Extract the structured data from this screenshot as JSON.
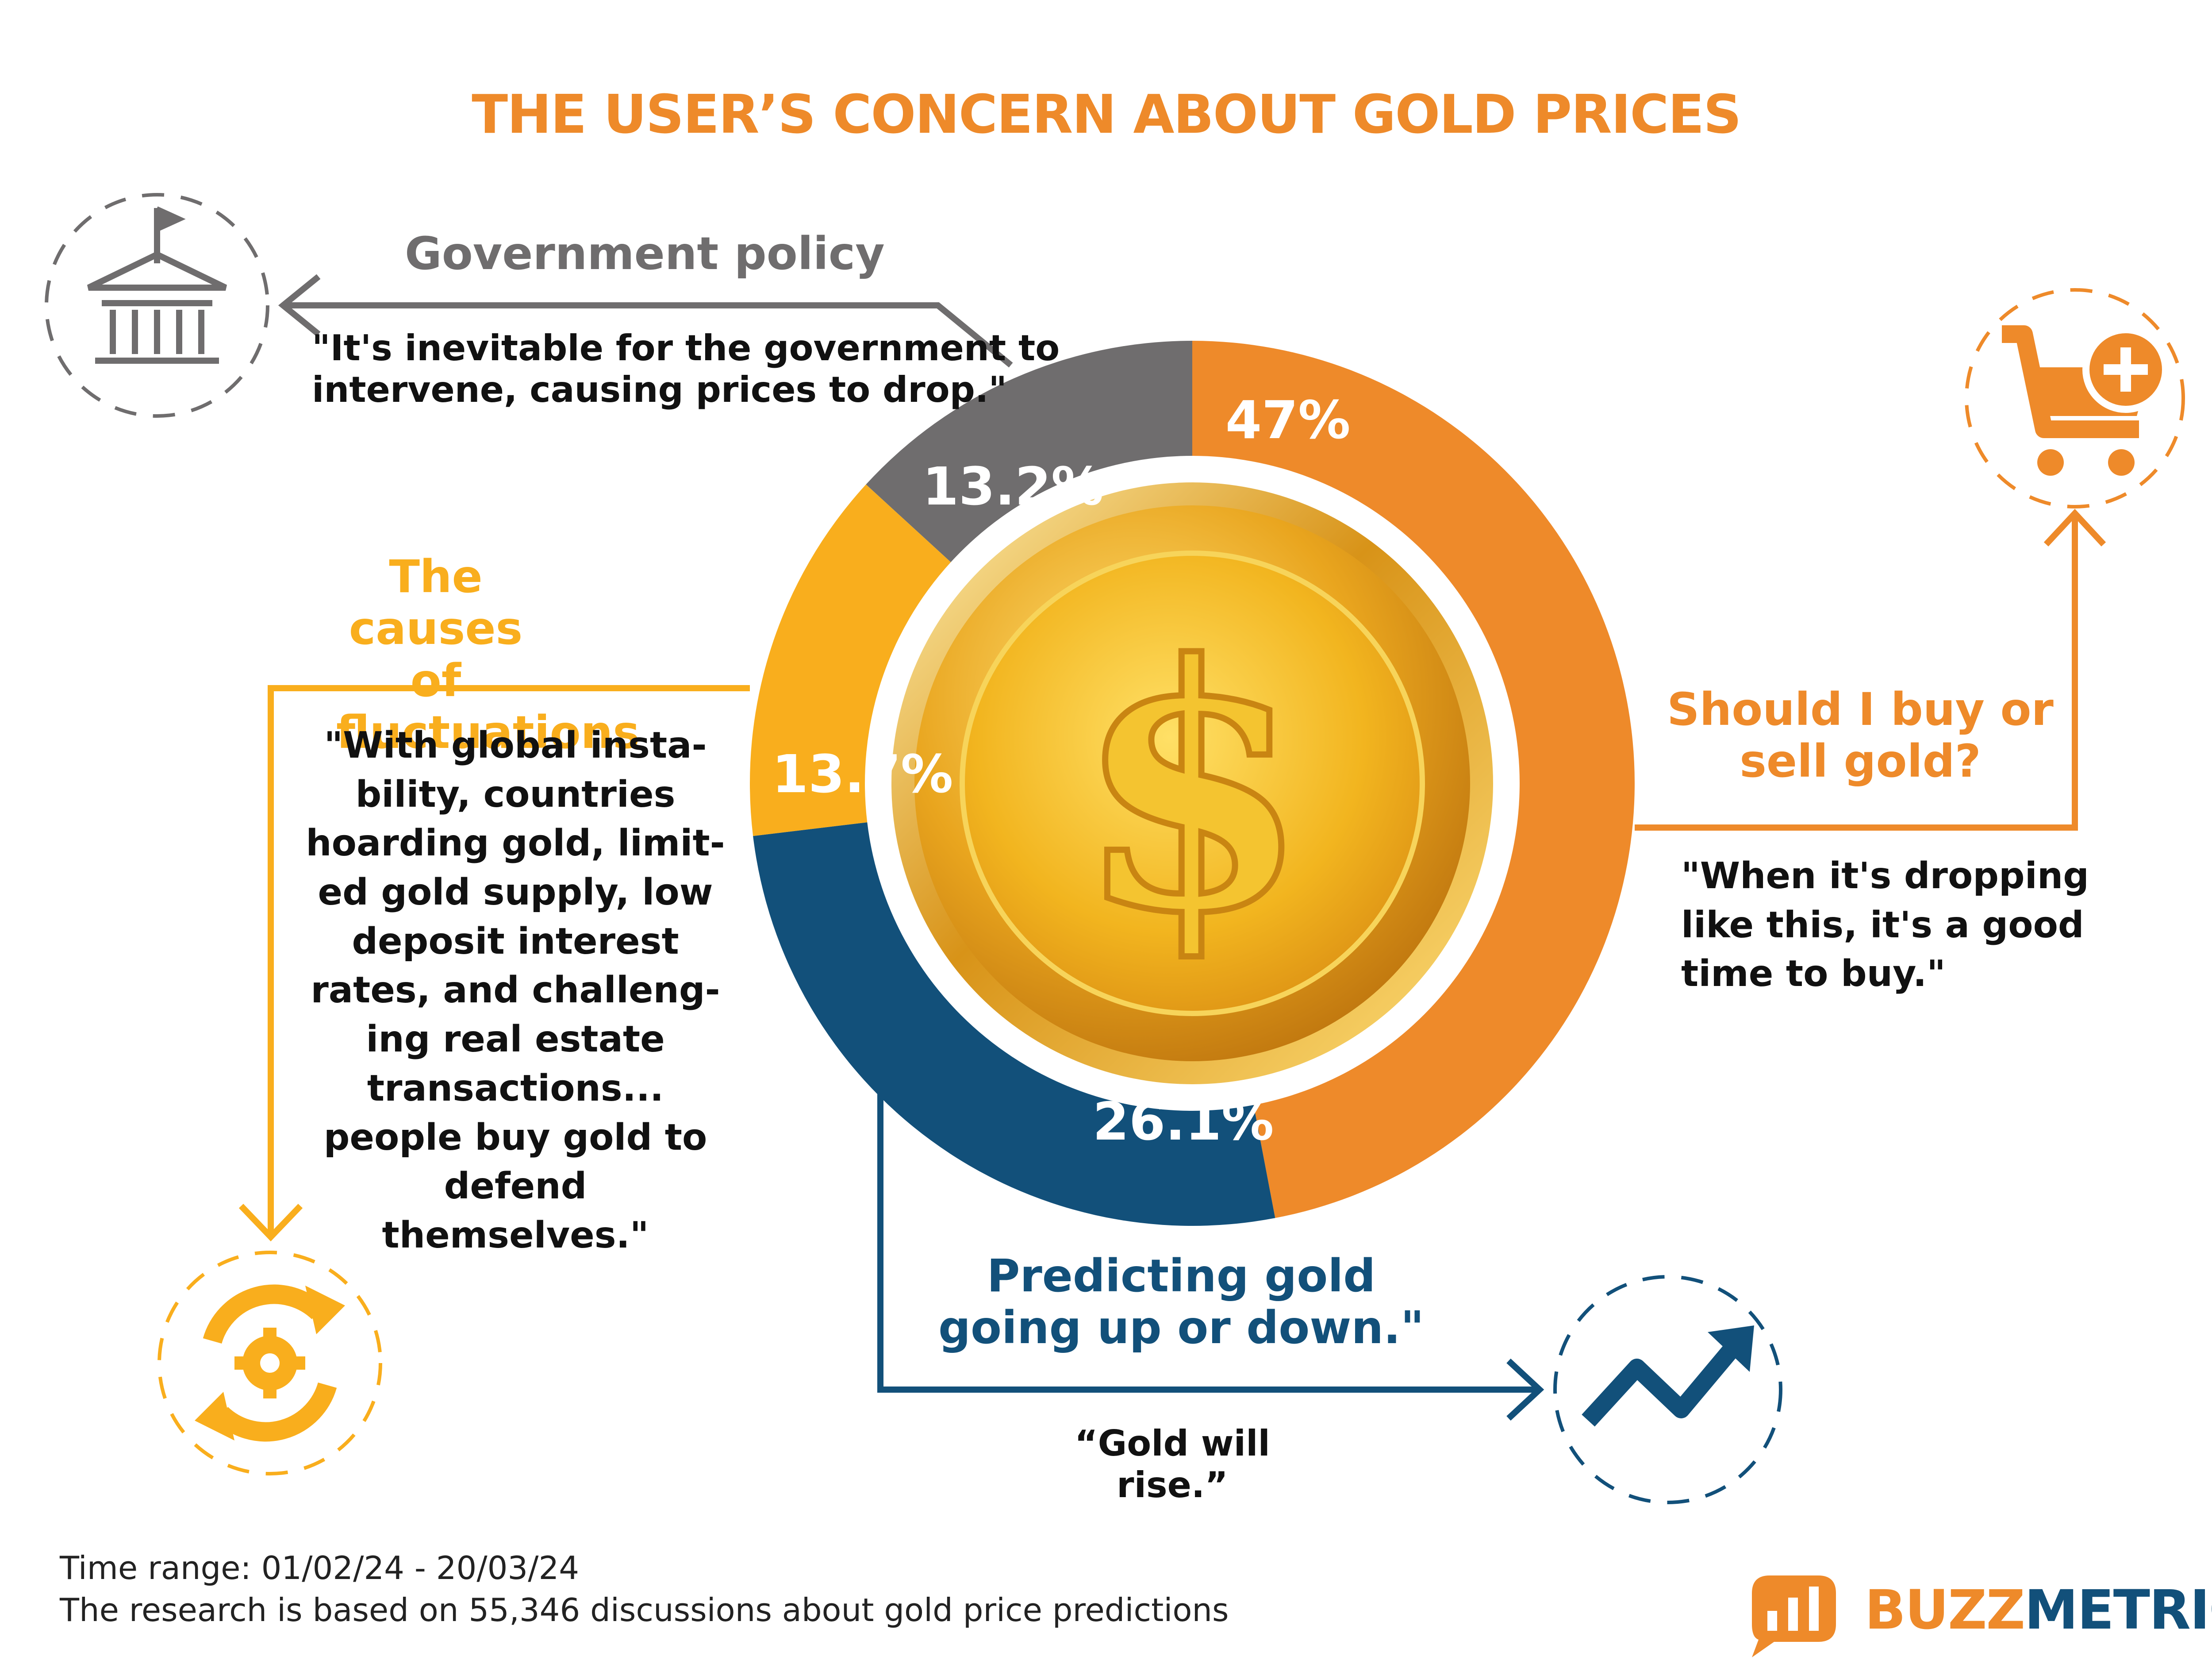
{
  "title": "THE USER’S CONCERN ABOUT GOLD PRICES",
  "colors": {
    "orange": "#EE8A2A",
    "yellow": "#F9AE1D",
    "gray": "#6F6D6E",
    "blue": "#12507A",
    "title": "#EE8A2A",
    "gold": "#E9A81E"
  },
  "center_icon": "dollar-coin-icon",
  "chart_data": {
    "type": "pie",
    "title": "THE USER’S CONCERN ABOUT GOLD PRICES",
    "slices": [
      {
        "label": "Should I buy or sell gold?",
        "value": 47,
        "display": "47%",
        "color": "#EE8A2A"
      },
      {
        "label": "Predicting gold going up or down.\"",
        "value": 26.1,
        "display": "26.1%",
        "color": "#12507A"
      },
      {
        "label": "The causes of fluctuations",
        "value": 13.7,
        "display": "13.7%",
        "color": "#F9AE1D"
      },
      {
        "label": "Government policy",
        "value": 13.2,
        "display": "13.2%",
        "color": "#6F6D6E"
      }
    ]
  },
  "categories": {
    "government": {
      "heading": "Government policy",
      "quote_lines": [
        "\"It's inevitable for the government to",
        "intervene, causing prices to drop.\""
      ],
      "icon": "government-building-icon"
    },
    "causes": {
      "heading_lines": [
        "The causes of",
        "fluctuations"
      ],
      "quote_lines": [
        "\"With global insta-",
        "bility, countries",
        "hoarding gold, limit-",
        "ed gold supply, low",
        "deposit interest",
        "rates, and challeng-",
        "ing real estate",
        "transactions...",
        "people buy gold to",
        "defend themselves.\""
      ],
      "icon": "refresh-gear-icon"
    },
    "buy_sell": {
      "heading_lines": [
        "Should I buy or",
        "sell gold?"
      ],
      "quote_lines": [
        "\"When it's dropping",
        "like this, it's a good",
        "time to buy.\""
      ],
      "icon": "cart-plus-icon"
    },
    "predict": {
      "heading_lines": [
        "Predicting gold",
        "going up or down.\""
      ],
      "quote": "“Gold will rise.”",
      "icon": "trend-up-icon"
    }
  },
  "footer": {
    "time_range": "Time range: 01/02/24 - 20/03/24",
    "note": "The research is based on 55,346 discussions about gold price predictions"
  },
  "brand": {
    "part1": "BUZZ",
    "part2": "METRICS",
    "icon": "buzzmetrics-logo-icon"
  }
}
